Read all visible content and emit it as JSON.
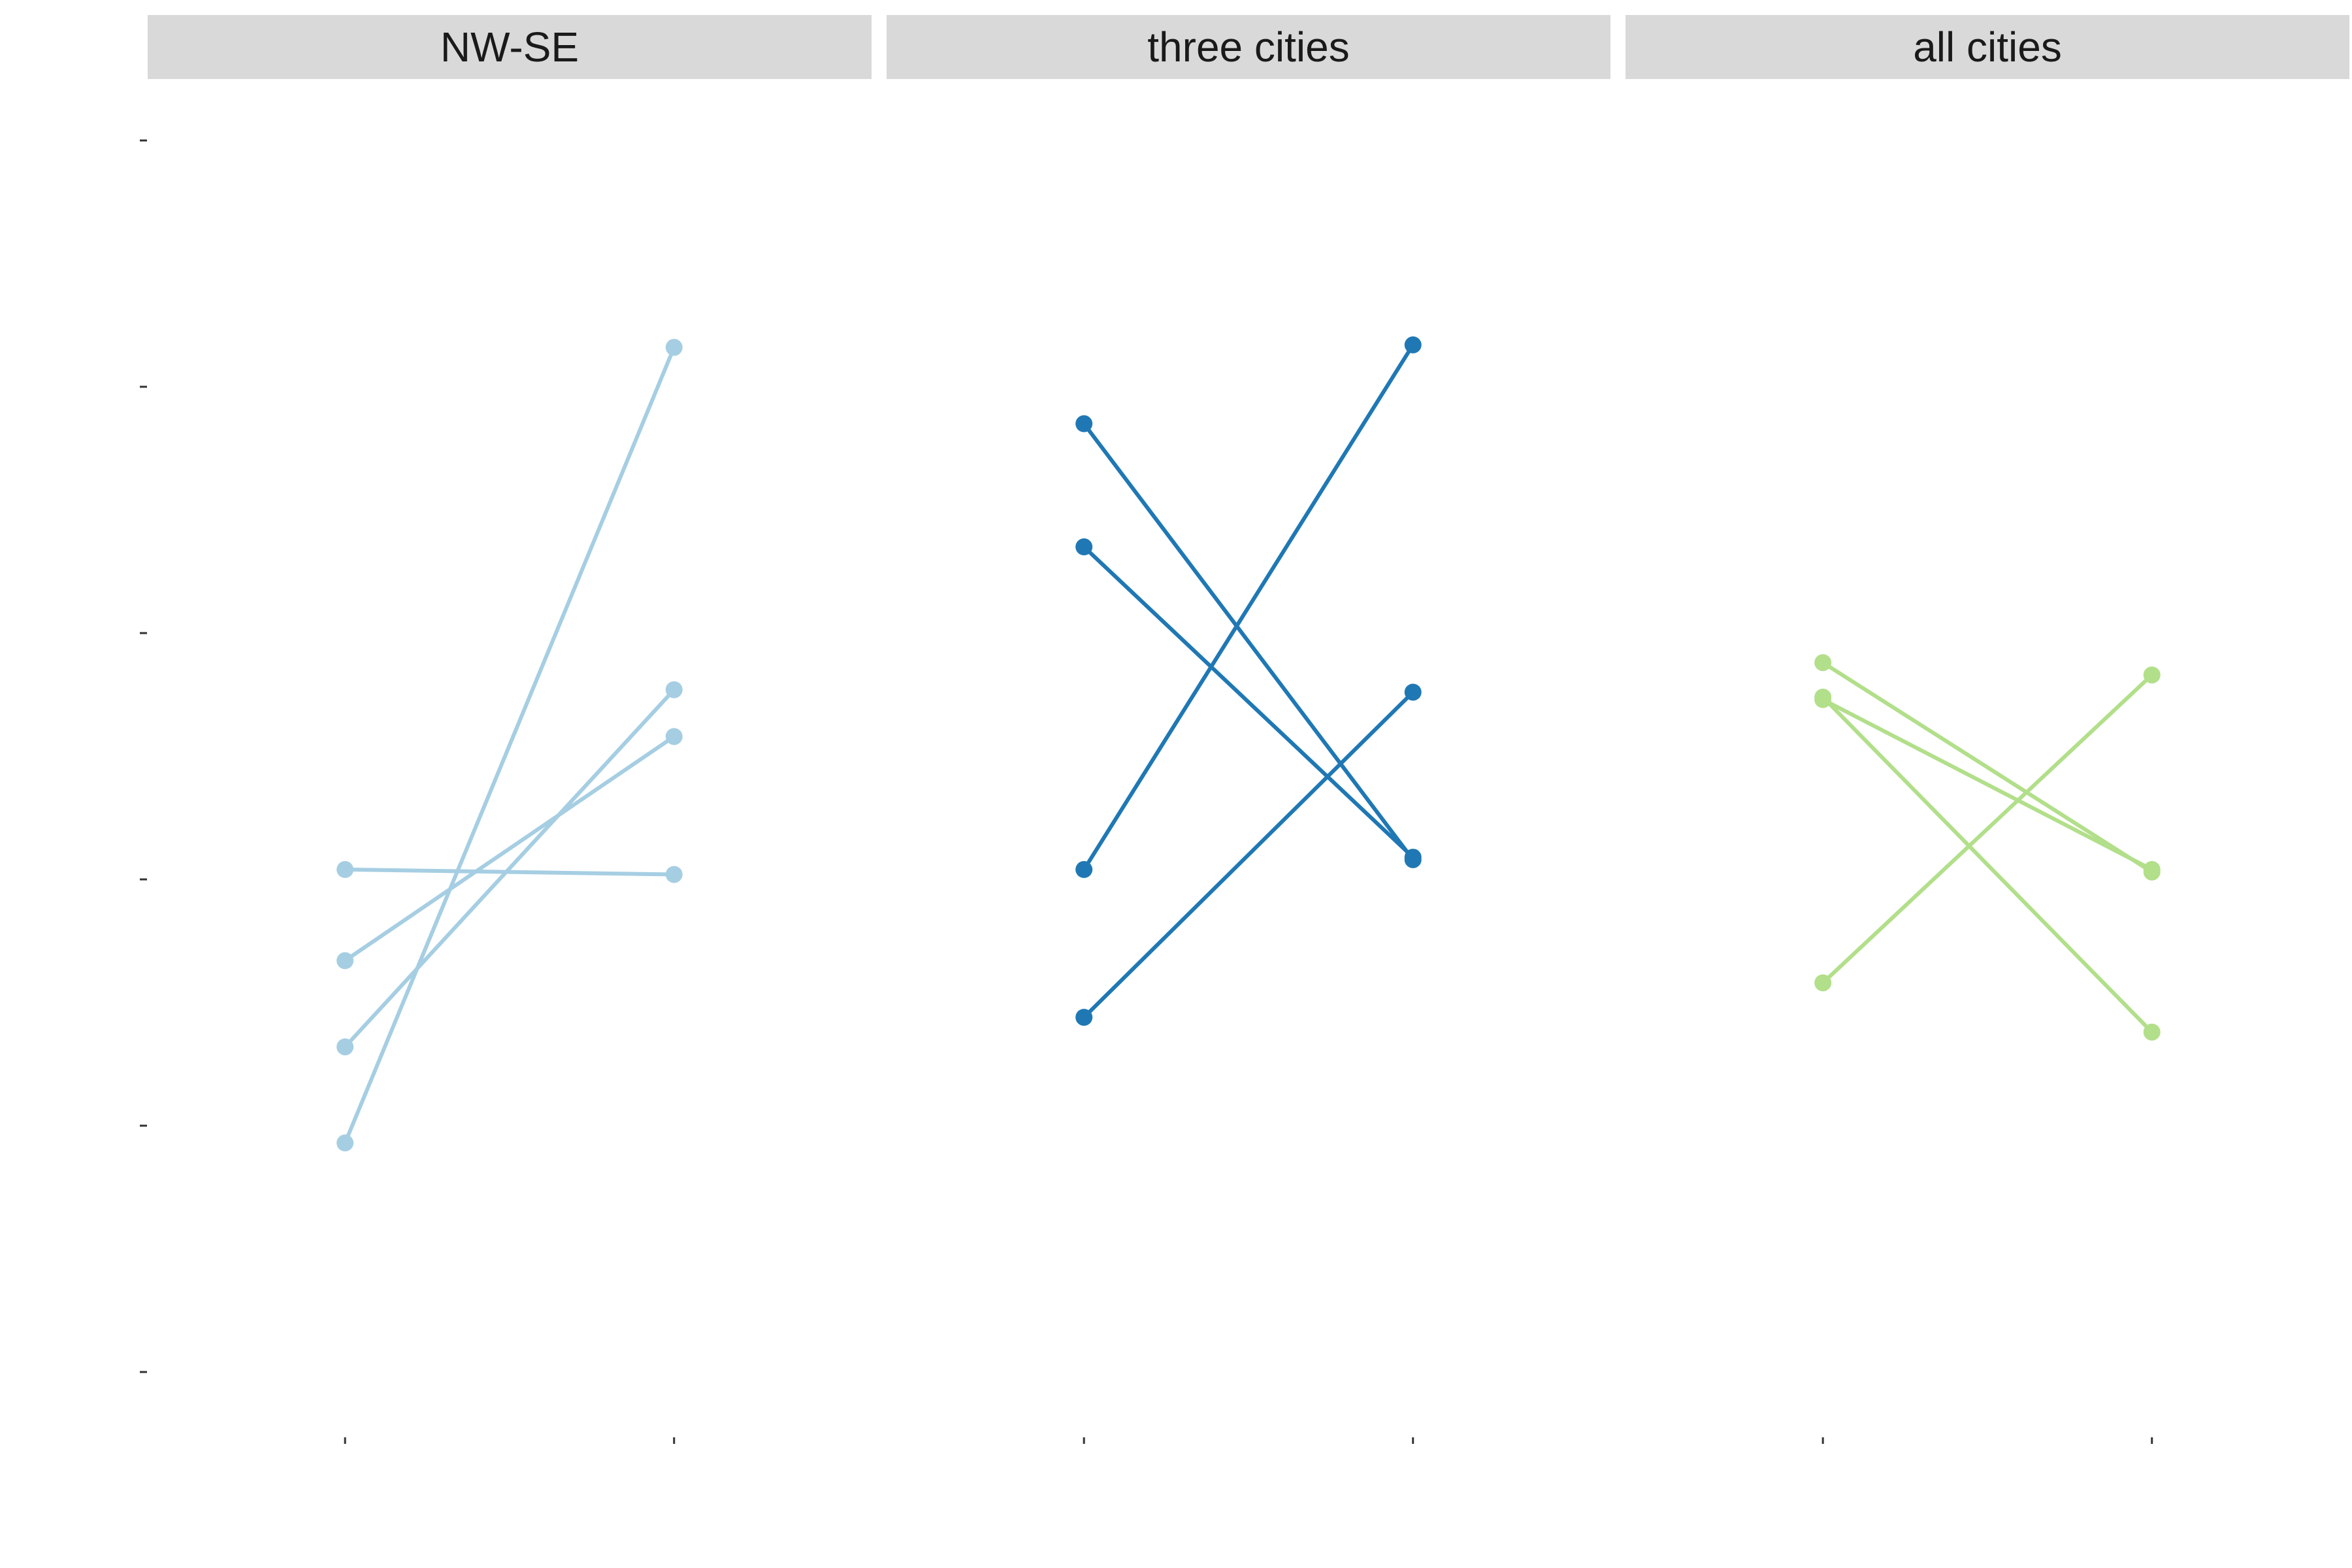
{
  "chart_data": {
    "type": "line",
    "title": "",
    "xlabel": "",
    "ylabel": "",
    "ylim": [
      0.5,
      5.5
    ],
    "y_ticks": [
      0.5,
      1.5,
      2.5,
      3.5,
      4.5,
      5.5
    ],
    "x_positions": [
      1,
      2
    ],
    "grid": false,
    "legend": "none",
    "facets": [
      {
        "label": "NW-SE",
        "color": "#A6CEE3",
        "series": [
          {
            "values": [
              1.43,
              4.66
            ]
          },
          {
            "values": [
              2.54,
              2.52
            ]
          },
          {
            "values": [
              2.17,
              3.08
            ]
          },
          {
            "values": [
              1.82,
              3.27
            ]
          }
        ]
      },
      {
        "label": "three cities",
        "color": "#1F78B4",
        "series": [
          {
            "values": [
              4.35,
              2.58
            ]
          },
          {
            "values": [
              3.85,
              2.59
            ]
          },
          {
            "values": [
              2.54,
              4.67
            ]
          },
          {
            "values": [
              1.94,
              3.26
            ]
          }
        ]
      },
      {
        "label": "all cities",
        "color": "#B2DF8A",
        "series": [
          {
            "values": [
              3.38,
              2.53
            ]
          },
          {
            "values": [
              3.23,
              2.54
            ]
          },
          {
            "values": [
              3.24,
              1.88
            ]
          },
          {
            "values": [
              2.08,
              3.33
            ]
          }
        ]
      }
    ]
  }
}
